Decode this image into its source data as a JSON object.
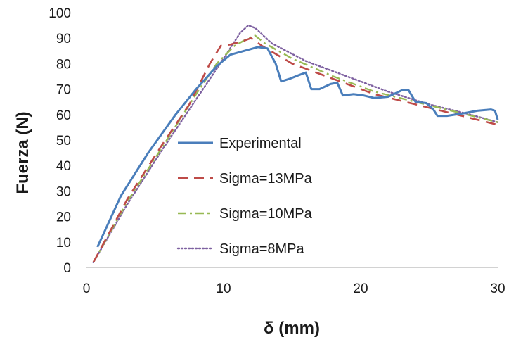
{
  "chart_data": {
    "type": "line",
    "title": "",
    "xlabel": "δ (mm)",
    "ylabel": "Fuerza (N)",
    "xlim": [
      0,
      30
    ],
    "ylim": [
      0,
      100
    ],
    "xticks": [
      0,
      10,
      20,
      30
    ],
    "yticks": [
      0,
      10,
      20,
      30,
      40,
      50,
      60,
      70,
      80,
      90,
      100
    ],
    "grid": false,
    "legend_position": "center-left",
    "series": [
      {
        "name": "Experimental",
        "color": "#4a7ebb",
        "dash": "solid",
        "points": [
          [
            0.8,
            8
          ],
          [
            2.5,
            28
          ],
          [
            4.5,
            45
          ],
          [
            6.5,
            60
          ],
          [
            8.0,
            70
          ],
          [
            9.5,
            79
          ],
          [
            10.5,
            83.5
          ],
          [
            11.5,
            85
          ],
          [
            12.5,
            86.5
          ],
          [
            13.2,
            86
          ],
          [
            13.8,
            80
          ],
          [
            14.2,
            73
          ],
          [
            14.8,
            74
          ],
          [
            15.5,
            75.5
          ],
          [
            16.0,
            76.5
          ],
          [
            16.4,
            70
          ],
          [
            17.0,
            70
          ],
          [
            17.8,
            72
          ],
          [
            18.3,
            72.5
          ],
          [
            18.7,
            67.5
          ],
          [
            19.5,
            68
          ],
          [
            20.2,
            67.5
          ],
          [
            21.0,
            66.5
          ],
          [
            22.0,
            67
          ],
          [
            23.0,
            69.5
          ],
          [
            23.5,
            69.5
          ],
          [
            24.0,
            65
          ],
          [
            24.8,
            64.5
          ],
          [
            25.3,
            62
          ],
          [
            25.6,
            59.5
          ],
          [
            26.3,
            59.5
          ],
          [
            27.5,
            60.5
          ],
          [
            28.5,
            61.5
          ],
          [
            29.5,
            62
          ],
          [
            29.8,
            61.5
          ],
          [
            30.0,
            58
          ]
        ]
      },
      {
        "name": "Sigma=13MPa",
        "color": "#be4b48",
        "dash": "dashed",
        "points": [
          [
            0.5,
            2
          ],
          [
            3.0,
            27
          ],
          [
            5.5,
            48
          ],
          [
            7.5,
            64
          ],
          [
            9.0,
            80
          ],
          [
            9.8,
            87
          ],
          [
            10.5,
            87.5
          ],
          [
            11.5,
            89
          ],
          [
            12.0,
            90
          ],
          [
            12.8,
            87
          ],
          [
            15.0,
            80
          ],
          [
            18.0,
            74
          ],
          [
            21.0,
            68
          ],
          [
            24.0,
            64
          ],
          [
            27.0,
            60
          ],
          [
            30.0,
            56
          ]
        ]
      },
      {
        "name": "Sigma=10MPa",
        "color": "#98b954",
        "dash": "dashdot",
        "points": [
          [
            0.5,
            2
          ],
          [
            3.0,
            26
          ],
          [
            5.5,
            47
          ],
          [
            8.0,
            68
          ],
          [
            9.5,
            80
          ],
          [
            10.8,
            87
          ],
          [
            11.8,
            90
          ],
          [
            12.3,
            91
          ],
          [
            13.0,
            88
          ],
          [
            15.0,
            82
          ],
          [
            18.0,
            75
          ],
          [
            21.0,
            69
          ],
          [
            24.0,
            65
          ],
          [
            27.0,
            61
          ],
          [
            30.0,
            57
          ]
        ]
      },
      {
        "name": "Sigma=8MPa",
        "color": "#7d60a0",
        "dash": "dotted",
        "points": [
          [
            0.5,
            2
          ],
          [
            3.0,
            25
          ],
          [
            5.5,
            46
          ],
          [
            8.0,
            66
          ],
          [
            10.0,
            82
          ],
          [
            11.2,
            92
          ],
          [
            11.8,
            95
          ],
          [
            12.3,
            94
          ],
          [
            13.5,
            88
          ],
          [
            16.0,
            81
          ],
          [
            19.0,
            75
          ],
          [
            22.0,
            69
          ],
          [
            25.0,
            64
          ],
          [
            28.0,
            60
          ],
          [
            30.0,
            57
          ]
        ]
      }
    ]
  }
}
